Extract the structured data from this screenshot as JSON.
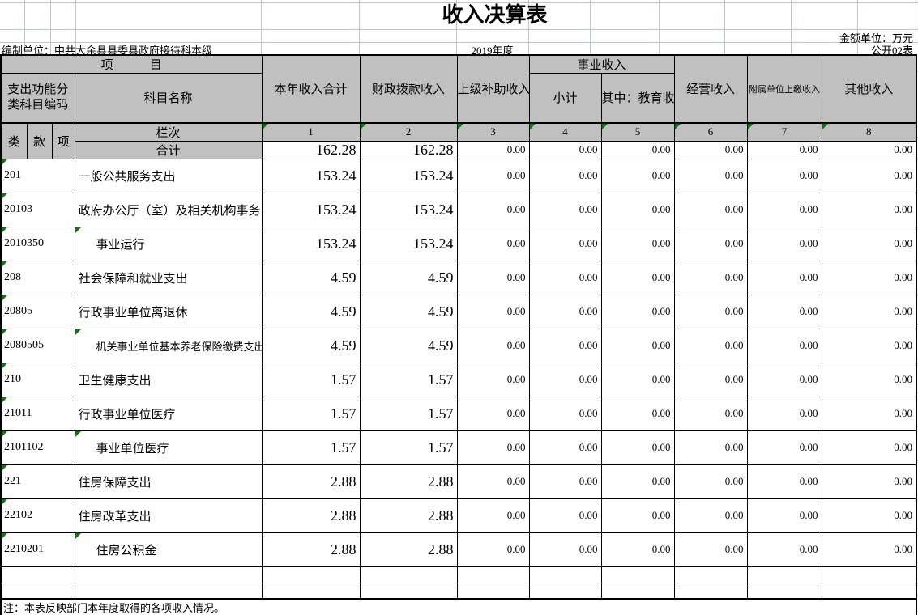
{
  "meta": {
    "title": "收入决算表",
    "unit_note": "金额单位：万元",
    "prepared_by": "编制单位：中共大余县县委县政府接待科本级",
    "year": "2019年度",
    "sheet_no": "公开02表",
    "footnote": "注：本表反映部门本年度取得的各项收入情况。"
  },
  "colors": {
    "header_gray": "#c0c0c0",
    "flag_green": "#007f00",
    "gridline_blue": "#bcc6d6"
  },
  "table": {
    "header": {
      "project": "项　　　目",
      "code_group": "支出功能分类科目编码",
      "subject": "科目名称",
      "total_income": "本年收入合计",
      "fiscal_appropriation": "财政拨款收入",
      "superior_subsidy": "上级补助收入",
      "business_income": "事业收入",
      "subtotal": "小计",
      "education_fee": "其中：教育收费",
      "operating_income": "经营收入",
      "affiliated_income": "附属单位上缴收入",
      "other_income": "其他收入",
      "class_col": "类",
      "section_col": "款",
      "item_col": "项",
      "rank_label": "栏次",
      "ranks": [
        "1",
        "2",
        "3",
        "4",
        "5",
        "6",
        "7",
        "8"
      ],
      "total_label": "合计"
    },
    "total_row": [
      "162.28",
      "162.28",
      "0.00",
      "0.00",
      "0.00",
      "0.00",
      "0.00",
      "0.00"
    ],
    "rows": [
      {
        "code": "201",
        "name": "一般公共服务支出",
        "indent": false,
        "values": [
          "153.24",
          "153.24",
          "0.00",
          "0.00",
          "0.00",
          "0.00",
          "0.00",
          "0.00"
        ]
      },
      {
        "code": "20103",
        "name": "政府办公厅（室）及相关机构事务",
        "indent": false,
        "values": [
          "153.24",
          "153.24",
          "0.00",
          "0.00",
          "0.00",
          "0.00",
          "0.00",
          "0.00"
        ]
      },
      {
        "code": "2010350",
        "name": "事业运行",
        "indent": true,
        "values": [
          "153.24",
          "153.24",
          "0.00",
          "0.00",
          "0.00",
          "0.00",
          "0.00",
          "0.00"
        ]
      },
      {
        "code": "208",
        "name": "社会保障和就业支出",
        "indent": false,
        "values": [
          "4.59",
          "4.59",
          "0.00",
          "0.00",
          "0.00",
          "0.00",
          "0.00",
          "0.00"
        ]
      },
      {
        "code": "20805",
        "name": "行政事业单位离退休",
        "indent": false,
        "values": [
          "4.59",
          "4.59",
          "0.00",
          "0.00",
          "0.00",
          "0.00",
          "0.00",
          "0.00"
        ]
      },
      {
        "code": "2080505",
        "name": "机关事业单位基本养老保险缴费支出",
        "indent": true,
        "values": [
          "4.59",
          "4.59",
          "0.00",
          "0.00",
          "0.00",
          "0.00",
          "0.00",
          "0.00"
        ]
      },
      {
        "code": "210",
        "name": "卫生健康支出",
        "indent": false,
        "values": [
          "1.57",
          "1.57",
          "0.00",
          "0.00",
          "0.00",
          "0.00",
          "0.00",
          "0.00"
        ]
      },
      {
        "code": "21011",
        "name": "行政事业单位医疗",
        "indent": false,
        "values": [
          "1.57",
          "1.57",
          "0.00",
          "0.00",
          "0.00",
          "0.00",
          "0.00",
          "0.00"
        ]
      },
      {
        "code": "2101102",
        "name": "事业单位医疗",
        "indent": true,
        "values": [
          "1.57",
          "1.57",
          "0.00",
          "0.00",
          "0.00",
          "0.00",
          "0.00",
          "0.00"
        ]
      },
      {
        "code": "221",
        "name": "住房保障支出",
        "indent": false,
        "values": [
          "2.88",
          "2.88",
          "0.00",
          "0.00",
          "0.00",
          "0.00",
          "0.00",
          "0.00"
        ]
      },
      {
        "code": "22102",
        "name": "住房改革支出",
        "indent": false,
        "values": [
          "2.88",
          "2.88",
          "0.00",
          "0.00",
          "0.00",
          "0.00",
          "0.00",
          "0.00"
        ]
      },
      {
        "code": "2210201",
        "name": "住房公积金",
        "indent": true,
        "values": [
          "2.88",
          "2.88",
          "0.00",
          "0.00",
          "0.00",
          "0.00",
          "0.00",
          "0.00"
        ]
      }
    ],
    "empty_row_count": 2
  }
}
